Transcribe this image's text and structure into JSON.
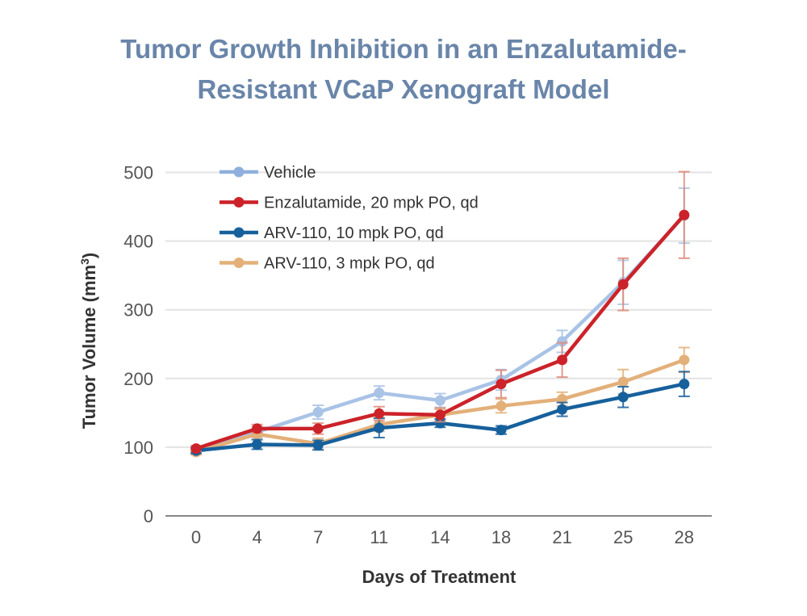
{
  "chart_data": {
    "type": "line",
    "title_line1": "Tumor Growth Inhibition in an Enzalutamide-",
    "title_line2": "Resistant VCaP Xenograft Model",
    "xlabel": "Days of Treatment",
    "ylabel_main": "Tumor Volume (mm",
    "ylabel_sup": "3",
    "ylabel_close": ")",
    "x": [
      "0",
      "4",
      "7",
      "11",
      "14",
      "18",
      "21",
      "25",
      "28"
    ],
    "yticks": [
      "0",
      "100",
      "200",
      "300",
      "400",
      "500"
    ],
    "ylim": [
      0,
      500
    ],
    "grid": true,
    "legend_position": "top-left",
    "series": [
      {
        "name": "Vehicle",
        "color": "#a9c3e6",
        "legend_color": "#8fb0dc",
        "values": [
          97,
          122,
          151,
          179,
          168,
          198,
          254,
          340,
          437
        ],
        "errors": [
          4,
          8,
          10,
          10,
          10,
          15,
          16,
          32,
          40
        ]
      },
      {
        "name": "ARV-110, 3 mpk PO, qd",
        "color": "#e3b079",
        "legend_color": "#e3b079",
        "values": [
          93,
          119,
          105,
          133,
          147,
          160,
          170,
          195,
          227
        ],
        "errors": [
          4,
          8,
          8,
          10,
          8,
          10,
          10,
          18,
          18
        ]
      },
      {
        "name": "ARV-110, 10 mpk PO, qd",
        "color": "#16609c",
        "legend_color": "#16609c",
        "values": [
          95,
          104,
          103,
          128,
          135,
          125,
          155,
          173,
          192
        ],
        "errors": [
          4,
          7,
          7,
          14,
          6,
          6,
          10,
          15,
          18
        ]
      },
      {
        "name": "Enzalutamide, 20 mpk PO, qd",
        "color": "#cc2229",
        "legend_color": "#cc2229",
        "error_color": "#dd8a7a",
        "values": [
          98,
          127,
          127,
          149,
          147,
          192,
          227,
          337,
          438
        ],
        "errors": [
          4,
          6,
          8,
          10,
          10,
          20,
          25,
          38,
          63
        ]
      }
    ],
    "legend_order": [
      "Vehicle",
      "Enzalutamide, 20 mpk PO, qd",
      "ARV-110, 10 mpk PO, qd",
      "ARV-110, 3 mpk PO, qd"
    ]
  }
}
